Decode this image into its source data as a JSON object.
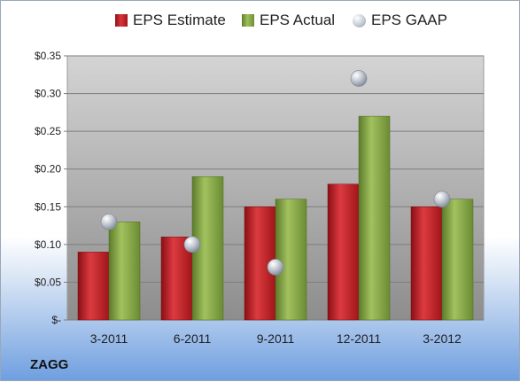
{
  "chart_data": {
    "type": "bar",
    "categories": [
      "3-2011",
      "6-2011",
      "9-2011",
      "12-2011",
      "3-2012"
    ],
    "series": [
      {
        "name": "EPS Estimate",
        "kind": "bar",
        "color": "#c42026",
        "values": [
          0.09,
          0.11,
          0.15,
          0.18,
          0.15
        ]
      },
      {
        "name": "EPS Actual",
        "kind": "bar",
        "color": "#8aab4a",
        "values": [
          0.13,
          0.19,
          0.16,
          0.27,
          0.16
        ]
      },
      {
        "name": "EPS GAAP",
        "kind": "marker",
        "color": "#b9c0ca",
        "values": [
          0.13,
          0.1,
          0.07,
          0.32,
          0.16
        ]
      }
    ],
    "ylim": [
      0,
      0.35
    ],
    "yticks": [
      0,
      0.05,
      0.1,
      0.15,
      0.2,
      0.25,
      0.3,
      0.35
    ],
    "ytick_labels": [
      "$-",
      "$0.05",
      "$0.10",
      "$0.15",
      "$0.20",
      "$0.25",
      "$0.30",
      "$0.35"
    ],
    "grid": true,
    "legend_position": "top"
  },
  "company": "ZAGG"
}
